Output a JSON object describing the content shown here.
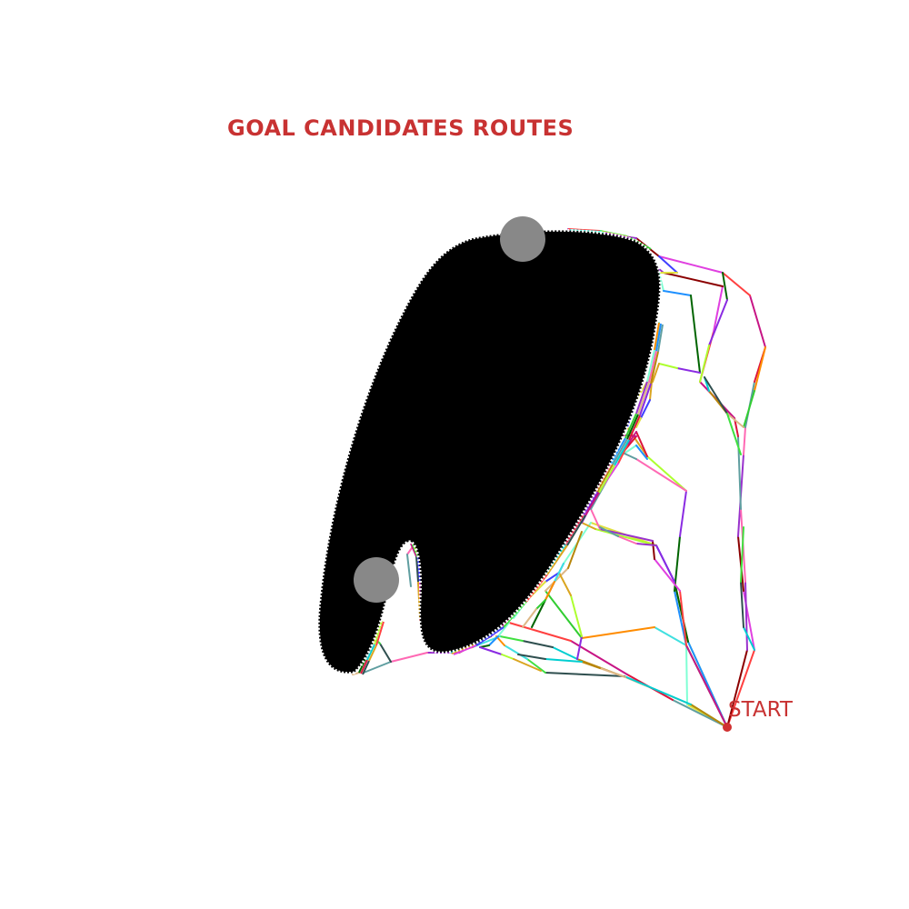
{
  "title": "GOAL CANDIDATES ROUTES",
  "start_label": "START",
  "colors": {
    "label": "#c83232",
    "obstacle": "#000000",
    "obstacle_edge": "#ffffff",
    "goal_candidate": "#888888",
    "start_marker": "#d03030"
  },
  "obstacle_name": "black-obstacle",
  "goal_candidates": [
    {
      "name": "goal-candidate-top"
    },
    {
      "name": "goal-candidate-bottom-left"
    }
  ],
  "route_palette": [
    "#ff4040",
    "#40e040",
    "#4040ff",
    "#e040e0",
    "#40e0e0",
    "#e0e040",
    "#8b0000",
    "#ff8c00",
    "#7fffd4",
    "#9932cc",
    "#32cd32",
    "#1e90ff",
    "#ff69b4",
    "#deb887",
    "#006400",
    "#5f9ea0",
    "#b8860b",
    "#8a2be2",
    "#dc143c",
    "#00ced1",
    "#adff2f",
    "#c71585",
    "#2f4f4f",
    "#daa520"
  ]
}
